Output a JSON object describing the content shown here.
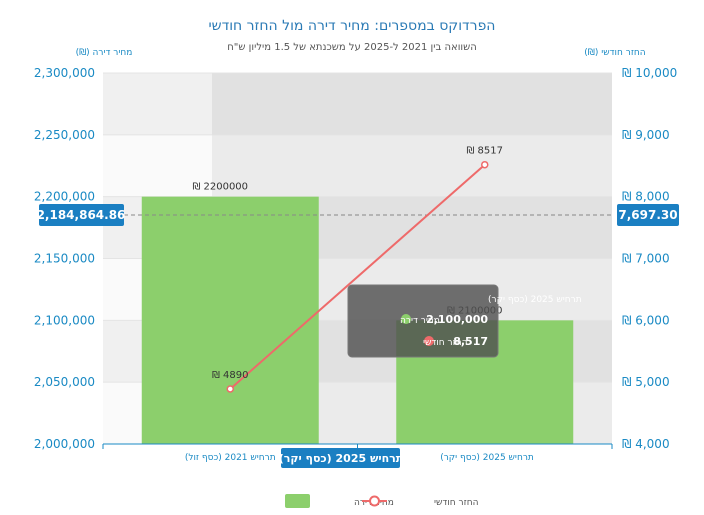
{
  "chart_data": {
    "type": "bar",
    "title": "הפרדוקס במספרים: מחיר דירה מול החזר חודשי",
    "subtitle": "השוואה בין 2021 ל-2025 על משכנתא של 1.5 מיליון ש\"ח",
    "categories": [
      "תרחיש 2021 (כסף זול)",
      "תרחיש 2025 (כסף יקר)"
    ],
    "series": [
      {
        "name": "מחיר דירה",
        "type": "bar",
        "axis": "left",
        "values": [
          2200000,
          2100000
        ],
        "labels": [
          "₪ 2200000",
          "₪ 2100000"
        ],
        "color": "#8ccf6c"
      },
      {
        "name": "החזר חודשי",
        "type": "line",
        "axis": "right",
        "values": [
          4890,
          8517
        ],
        "labels": [
          "₪ 4890",
          "₪ 8517"
        ],
        "color": "#ee6a6a"
      }
    ],
    "left_axis": {
      "title": "מחיר דירה (₪)",
      "ylim": [
        2000000,
        2300000
      ],
      "ticks": [
        2000000,
        2050000,
        2100000,
        2150000,
        2200000,
        2250000,
        2300000
      ],
      "tick_labels": [
        "2,000,000",
        "2,050,000",
        "2,100,000",
        "2,150,000",
        "2,200,000",
        "2,250,000",
        "2,300,000"
      ]
    },
    "right_axis": {
      "title": "החזר חודשי (₪)",
      "ylim": [
        4000,
        10000
      ],
      "ticks": [
        4000,
        5000,
        6000,
        7000,
        8000,
        9000,
        10000
      ],
      "tick_labels": [
        "₪ 4,000",
        "₪ 5,000",
        "₪ 6,000",
        "₪ 7,000",
        "₪ 8,000",
        "₪ 9,000",
        "₪ 10,000"
      ]
    },
    "axis_pointer": {
      "left_value": 2184864.86,
      "left_label": "2,184,864.86",
      "right_value": 7697.3,
      "right_label": "7,697.30",
      "category_label": "תרחיש 2025 (כסף יקר)"
    },
    "tooltip": {
      "title": "תרחיש 2025 (כסף יקר)",
      "rows": [
        {
          "name": "מחיר דירה",
          "value": "2,100,000",
          "color": "#8ccf6c"
        },
        {
          "name": "החזר חודשי",
          "value": "8,517",
          "color": "#ee6a6a"
        }
      ]
    },
    "legend_position": "bottom-center",
    "grid": true
  }
}
